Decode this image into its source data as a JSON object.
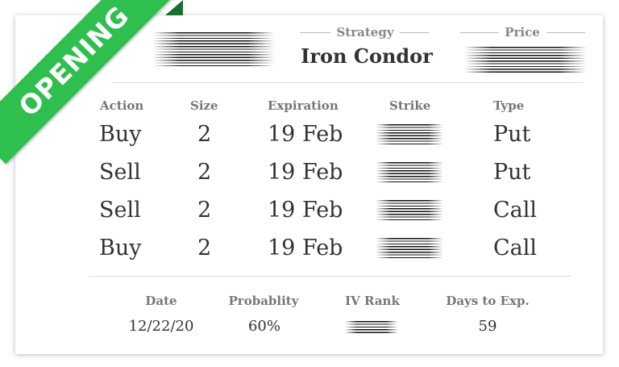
{
  "badge": {
    "label": "OPENING"
  },
  "header": {
    "strategy_label": "Strategy",
    "strategy_value": "Iron Condor",
    "price_label": "Price"
  },
  "columns": [
    "Action",
    "Size",
    "Expiration",
    "Strike",
    "Type"
  ],
  "legs": [
    {
      "action": "Buy",
      "size": "2",
      "expiration": "19 Feb",
      "type": "Put"
    },
    {
      "action": "Sell",
      "size": "2",
      "expiration": "19 Feb",
      "type": "Put"
    },
    {
      "action": "Sell",
      "size": "2",
      "expiration": "19 Feb",
      "type": "Call"
    },
    {
      "action": "Buy",
      "size": "2",
      "expiration": "19 Feb",
      "type": "Call"
    }
  ],
  "footer": {
    "date_label": "Date",
    "date_value": "12/22/20",
    "probability_label": "Probablity",
    "probability_value": "60%",
    "iv_rank_label": "IV Rank",
    "dte_label": "Days to Exp.",
    "dte_value": "59"
  },
  "colors": {
    "ribbon": "#2fbf4f",
    "ribbon_fold": "#1a6e2c"
  }
}
